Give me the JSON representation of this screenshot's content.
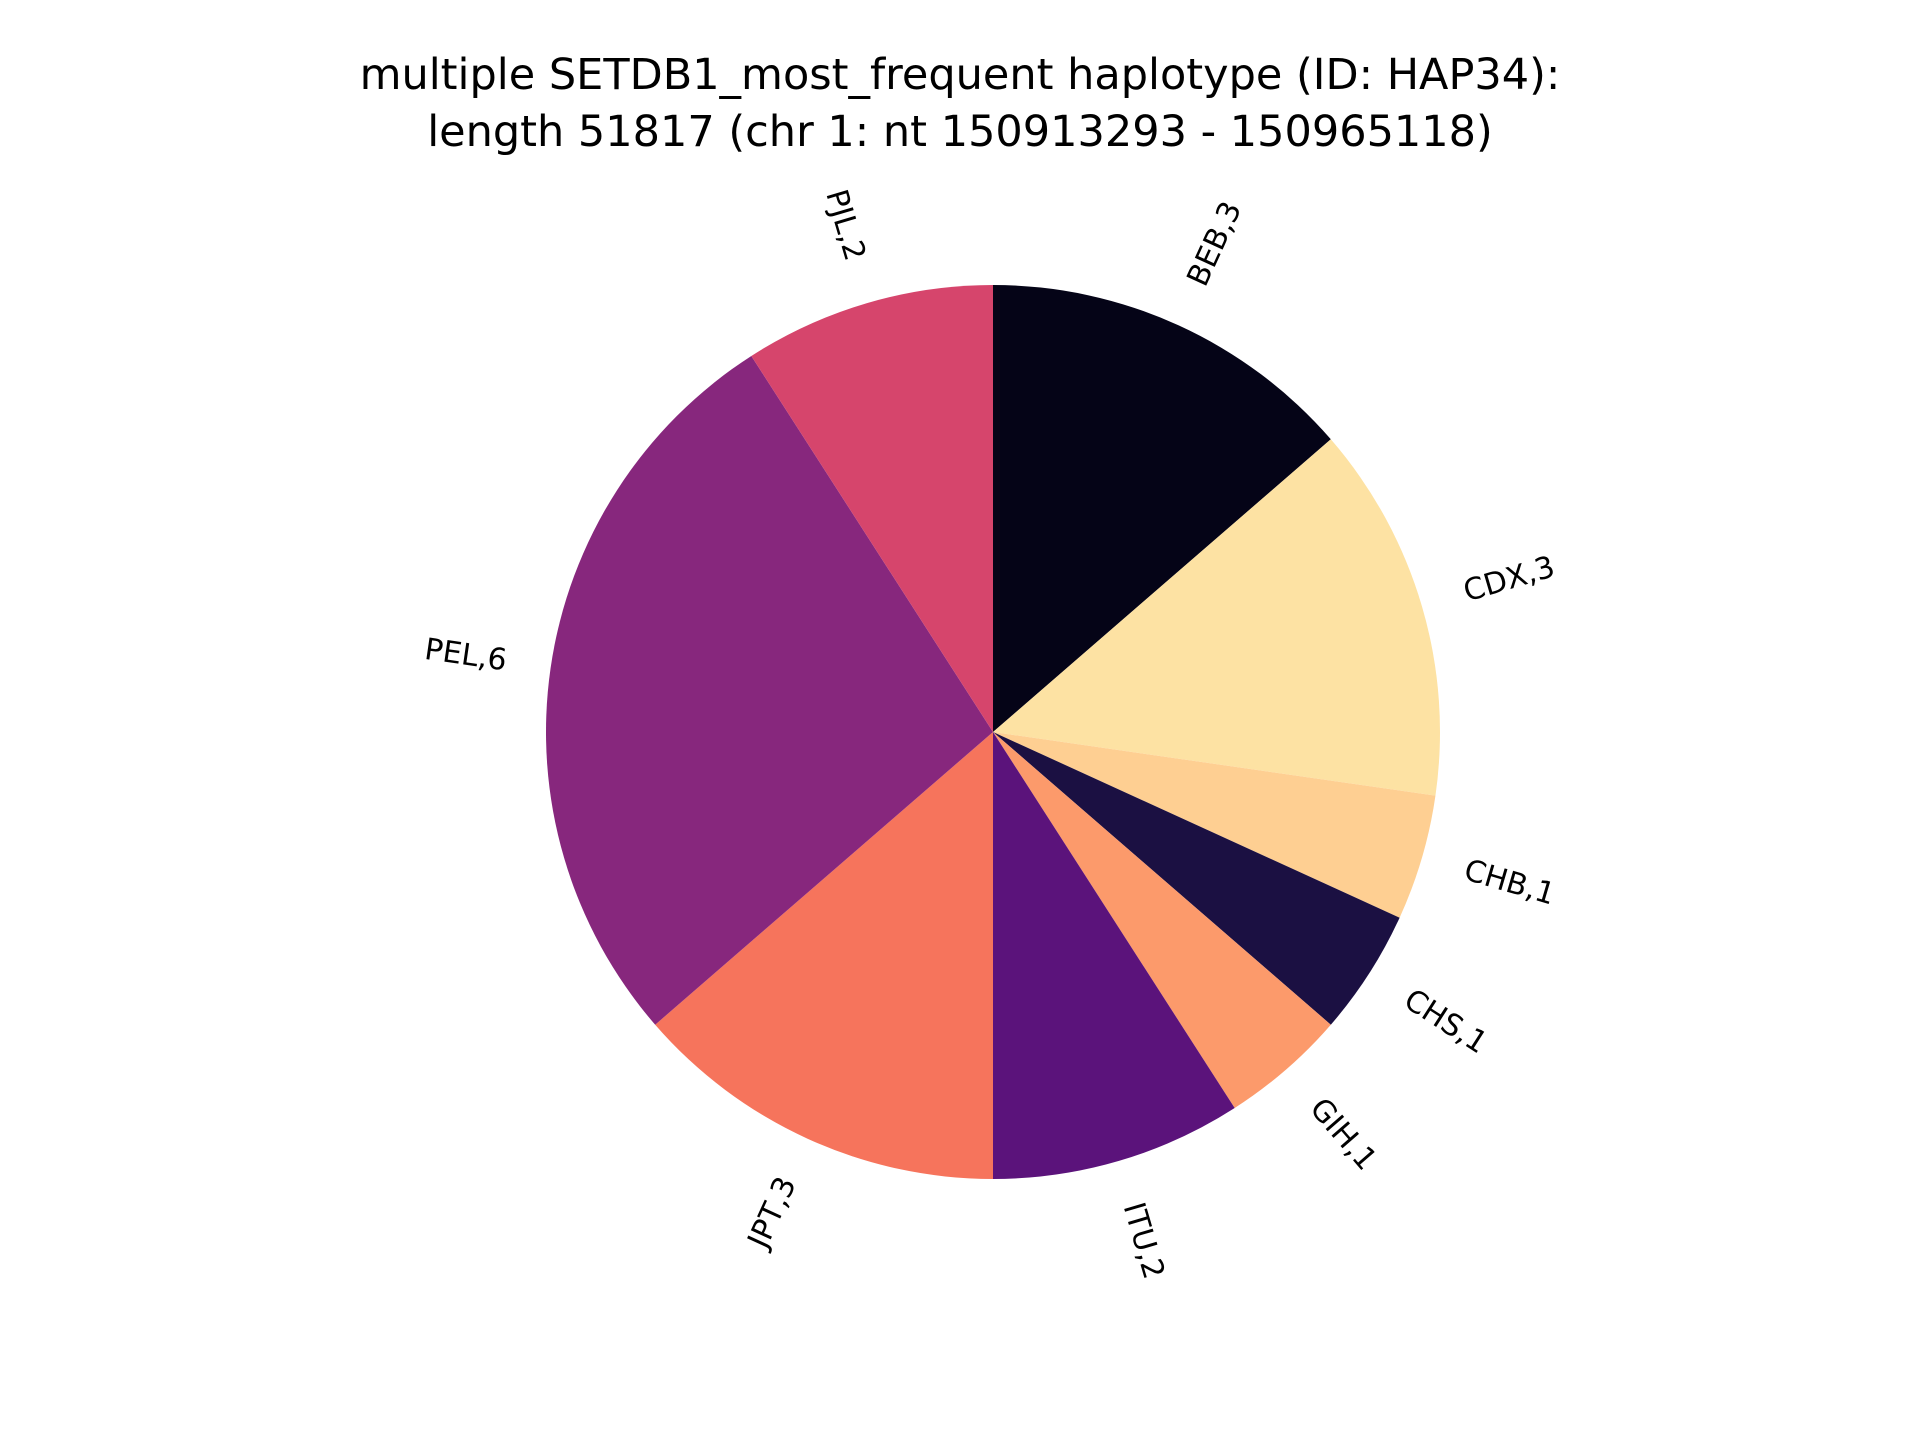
{
  "chart_data": {
    "type": "pie",
    "title_lines": [
      "multiple SETDB1_most_frequent haplotype (ID: HAP34):",
      "length 51817 (chr 1: nt 150913293 - 150965118)"
    ],
    "start_angle_deg": 90,
    "direction": "clockwise",
    "slices": [
      {
        "name": "BEB",
        "value": 3,
        "label": "BEB,3",
        "color": "#050417"
      },
      {
        "name": "CDX",
        "value": 3,
        "label": "CDX,3",
        "color": "#FDE2A3"
      },
      {
        "name": "CHB",
        "value": 1,
        "label": "CHB,1",
        "color": "#FECF92"
      },
      {
        "name": "CHS",
        "value": 1,
        "label": "CHS,1",
        "color": "#1B1042"
      },
      {
        "name": "GIH",
        "value": 1,
        "label": "GIH,1",
        "color": "#FC9A6B"
      },
      {
        "name": "ITU",
        "value": 2,
        "label": "ITU,2",
        "color": "#5B137B"
      },
      {
        "name": "JPT",
        "value": 3,
        "label": "JPT,3",
        "color": "#F6745C"
      },
      {
        "name": "PEL",
        "value": 6,
        "label": "PEL,6",
        "color": "#87277D"
      },
      {
        "name": "PJL",
        "value": 2,
        "label": "PJL,2",
        "color": "#D6456C"
      }
    ]
  }
}
